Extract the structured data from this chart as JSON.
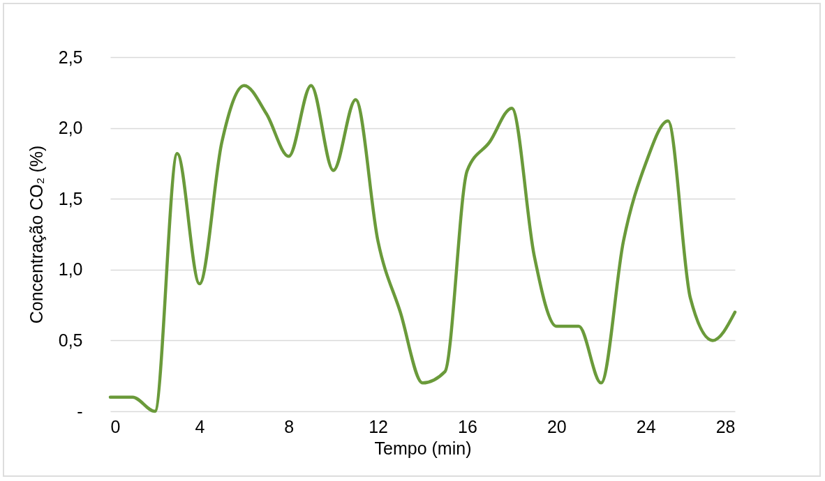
{
  "chart_data": {
    "type": "line",
    "xlabel": "Tempo (min)",
    "ylabel": "Concentração CO₂ (%)",
    "x": [
      0,
      1,
      2,
      3,
      4,
      5,
      6,
      7,
      8,
      9,
      10,
      11,
      12,
      13,
      14,
      15,
      16,
      17,
      18,
      19,
      20,
      21,
      22,
      23,
      24,
      25,
      26,
      27,
      28
    ],
    "series": [
      {
        "color": "#6a9a3a",
        "values": [
          0.1,
          0.1,
          0,
          1.82,
          0.9,
          1.9,
          2.3,
          2.1,
          1.8,
          2.3,
          1.7,
          2.2,
          1.2,
          0.7,
          0.2,
          0.28,
          1.7,
          1.9,
          2.14,
          1.1,
          0.6,
          0.6,
          0.2,
          1.2,
          1.75,
          2.05,
          0.8,
          0.5,
          0.7
        ]
      }
    ],
    "xlim": [
      0,
      28
    ],
    "xticks": [
      0,
      4,
      8,
      12,
      16,
      20,
      24,
      28
    ],
    "ylim": [
      0,
      2.5
    ],
    "yticks": [
      {
        "value": 0,
        "label": "-"
      },
      {
        "value": 0.5,
        "label": "0,5"
      },
      {
        "value": 1,
        "label": "1,0"
      },
      {
        "value": 1.5,
        "label": "1,5"
      },
      {
        "value": 2,
        "label": "2,0"
      },
      {
        "value": 2.5,
        "label": "2,5"
      }
    ],
    "grid": "y",
    "marker": "none",
    "line_style": "solid"
  }
}
